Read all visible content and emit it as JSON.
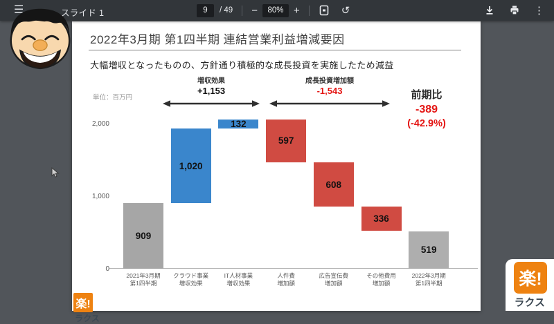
{
  "icons": {
    "menu": "☰",
    "zoom_out": "−",
    "zoom_in": "+",
    "rotate_ccw": "↺",
    "more_vertical": "⋮"
  },
  "toolbar": {
    "document_title": "スライド 1",
    "page_current": "9",
    "page_total": "/ 49",
    "zoom_level": "80%"
  },
  "slide_footer": {
    "logo_text": "楽!",
    "logo_sub_text": "ラクス"
  },
  "watermark": {
    "logo_text": "楽!",
    "brand_text": "ラクス"
  },
  "chart_data": {
    "type": "bar",
    "subtype": "waterfall",
    "title": "2022年3月期 第1四半期 連結営業利益増減要因",
    "subtitle": "大幅増収となったものの、方針通り積極的な成長投資を実施したため減益",
    "unit": "単位：百万円",
    "grid": false,
    "ylim": [
      0,
      2100
    ],
    "y_ticks": [
      {
        "value": 0,
        "label": "0"
      },
      {
        "value": 1000,
        "label": "1,000"
      },
      {
        "value": 2000,
        "label": "2,000"
      }
    ],
    "categories": [
      [
        "2021年3月期",
        "第1四半期"
      ],
      [
        "クラウド事業",
        "増収効果"
      ],
      [
        "IT人材事業",
        "増収効果"
      ],
      [
        "人件費",
        "増加額"
      ],
      [
        "広告宣伝費",
        "増加額"
      ],
      [
        "その他費用",
        "増加額"
      ],
      [
        "2022年3月期",
        "第1四半期"
      ]
    ],
    "bars": [
      {
        "label": "909",
        "value": 909,
        "kind": "total",
        "color": "#a6a6a6"
      },
      {
        "label": "1,020",
        "value": 1020,
        "kind": "increase",
        "color": "#3a86cc"
      },
      {
        "label": "132",
        "value": 132,
        "kind": "increase",
        "color": "#3a86cc"
      },
      {
        "label": "597",
        "value": -597,
        "kind": "decrease",
        "color": "#d04b42"
      },
      {
        "label": "608",
        "value": -608,
        "kind": "decrease",
        "color": "#d04b42"
      },
      {
        "label": "336",
        "value": -336,
        "kind": "decrease",
        "color": "#d04b42"
      },
      {
        "label": "519",
        "value": 519,
        "kind": "total",
        "color": "#aeaeae"
      }
    ],
    "annotations": {
      "revenue_effect": {
        "label": "増収効果",
        "value": "+1,153"
      },
      "growth_investment": {
        "label": "成長投資増加額",
        "value": "-1,543"
      },
      "yoy": {
        "label": "前期比",
        "value": "-389",
        "percent": "(-42.9%)"
      }
    },
    "colors": {
      "increase": "#3a86cc",
      "decrease": "#d04b42",
      "total": "#a6a6a6",
      "negative_text": "#e41513"
    }
  }
}
